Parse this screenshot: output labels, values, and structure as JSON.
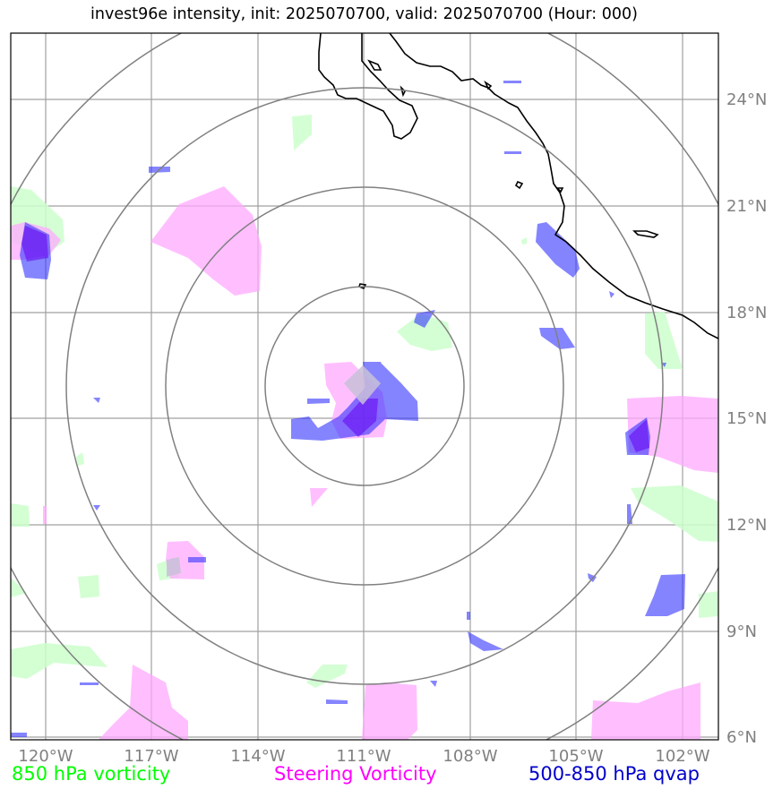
{
  "title": "invest96e intensity, init: 2025070700, valid: 2025070700 (Hour: 000)",
  "map": {
    "lon_ticks": [
      "120°W",
      "117°W",
      "114°W",
      "111°W",
      "108°W",
      "105°W",
      "102°W"
    ],
    "lat_ticks": [
      "24°N",
      "21°N",
      "18°N",
      "15°N",
      "12°N",
      "9°N",
      "6°N"
    ],
    "lon_range": [
      -121,
      -101
    ],
    "lat_range": [
      6,
      26
    ],
    "center": {
      "lon": -111,
      "lat": 16
    },
    "range_rings_count": 4,
    "grid": true,
    "colors": {
      "vorticity_850": "#ccffcc",
      "steering_vorticity": "#ffaaff",
      "qvap": "#3333ff",
      "rings": "#808080",
      "coastline": "#000000",
      "grid": "#a0a0a0"
    }
  },
  "legend": {
    "vorticity": {
      "label": "850 hPa vorticity",
      "color": "#00ff00"
    },
    "steering": {
      "label": "Steering Vorticity",
      "color": "#ff00ff"
    },
    "qvap": {
      "label": "500-850 hPa qvap",
      "color": "#0000cc"
    }
  }
}
